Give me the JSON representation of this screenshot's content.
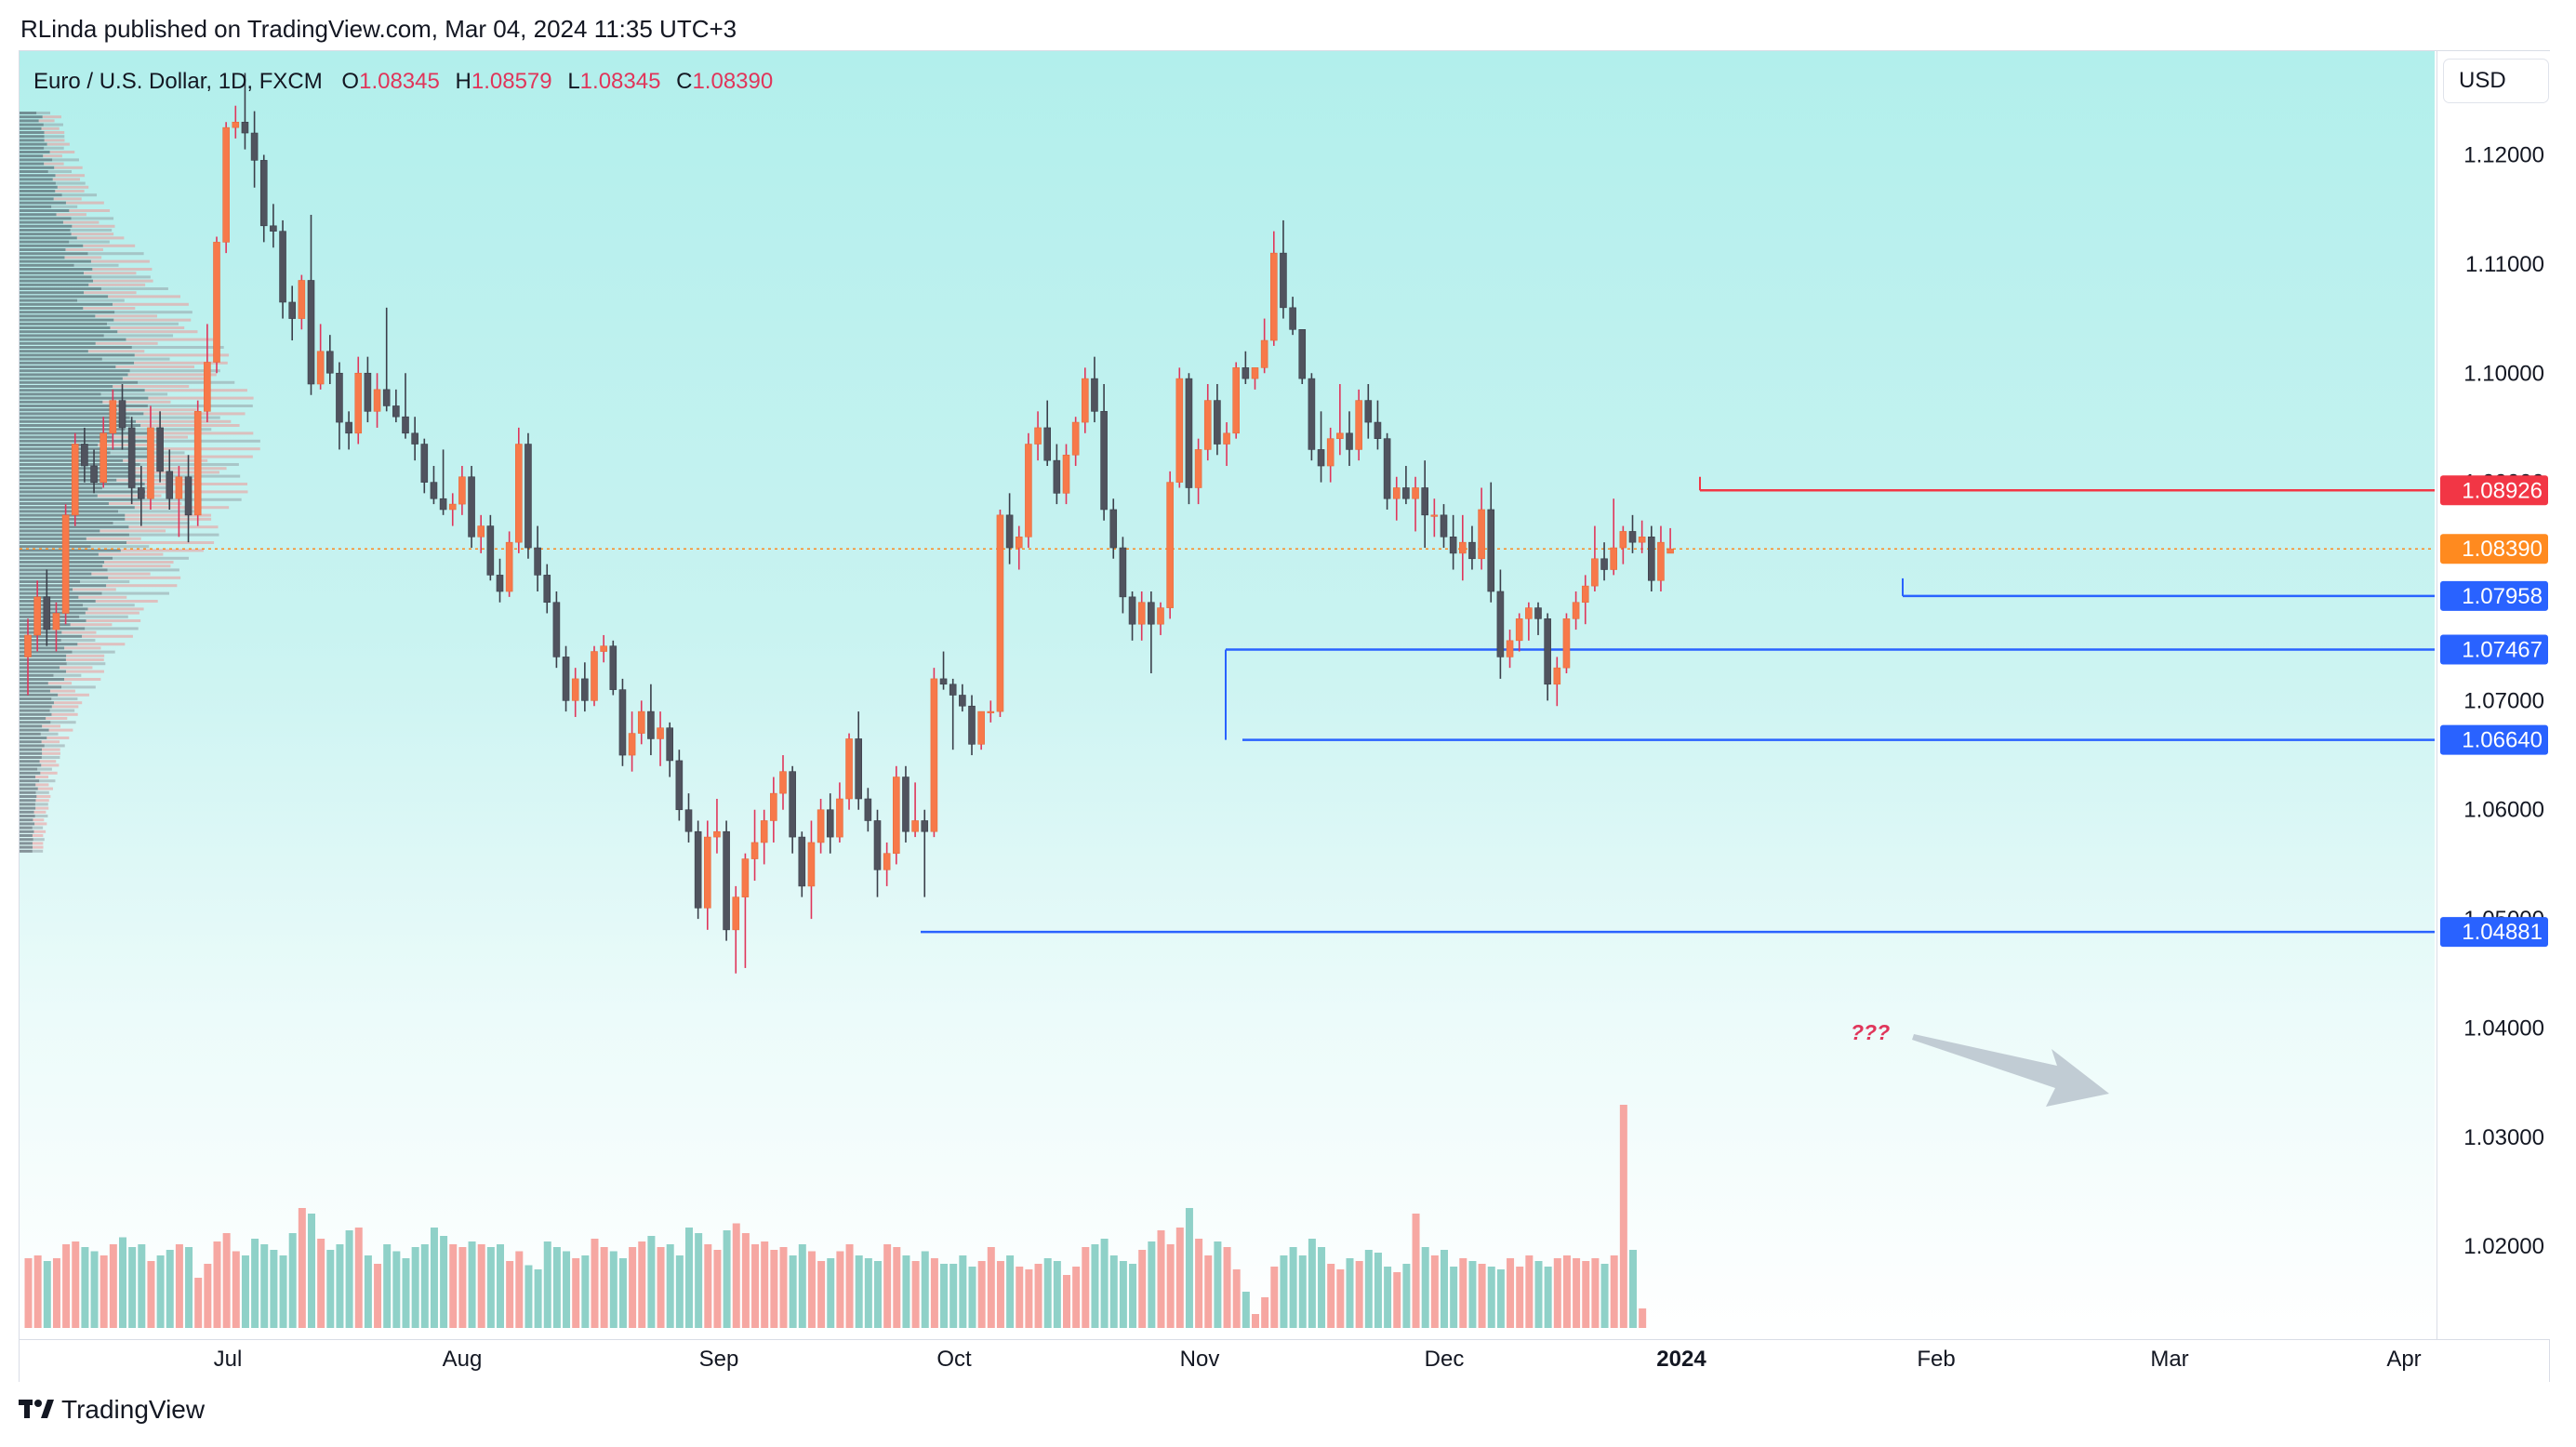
{
  "header": {
    "published": "RLinda published on TradingView.com, Mar 04, 2024 11:35 UTC+3"
  },
  "legend": {
    "symbol": "Euro / U.S. Dollar, 1D, FXCM",
    "o_label": "O",
    "o": "1.08345",
    "h_label": "H",
    "h": "1.08579",
    "l_label": "L",
    "l": "1.08345",
    "c_label": "C",
    "c": "1.08390"
  },
  "currency_button": "USD",
  "footer": {
    "brand": "TradingView"
  },
  "colors": {
    "up": "#f7794a",
    "down": "#50535e",
    "vol_up": "#f6a7a2",
    "vol_down": "#8fd1c8",
    "level_line": "#2962ff",
    "resistance_line": "#f23645",
    "current_price": "#ff8a1f"
  },
  "chart_data": {
    "type": "candlestick",
    "symbol": "EURUSD",
    "timeframe": "1D",
    "y_axis": {
      "min": 1.0115,
      "max": 1.1295,
      "ticks": [
        "1.12000",
        "1.11000",
        "1.10000",
        "1.09000",
        "1.08000",
        "1.07000",
        "1.06000",
        "1.05000",
        "1.04000",
        "1.03000",
        "1.02000"
      ]
    },
    "x_axis": {
      "labels": [
        "Jul",
        "Aug",
        "Sep",
        "Oct",
        "Nov",
        "Dec",
        "2024",
        "Feb",
        "Mar",
        "Apr"
      ]
    },
    "levels": [
      {
        "price": 1.08926,
        "label": "1.08926",
        "color": "#f23645",
        "start_date": "Jan 02, 2024"
      },
      {
        "price": 1.0839,
        "label": "1.08390",
        "color": "#ff8a1f",
        "dotted": true
      },
      {
        "price": 1.07958,
        "label": "1.07958",
        "color": "#2962ff",
        "start_date": "Jan 24, 2024"
      },
      {
        "price": 1.07467,
        "label": "1.07467",
        "color": "#2962ff",
        "start_date": "Oct 30, 2023"
      },
      {
        "price": 1.0664,
        "label": "1.06640",
        "color": "#2962ff",
        "start_date": "Nov 01, 2023"
      },
      {
        "price": 1.04881,
        "label": "1.04881",
        "color": "#2962ff",
        "start_date": "Sep 27, 2023"
      }
    ],
    "annotation": {
      "text": "???"
    },
    "candles_ohlc": [
      [
        1.074,
        1.0775,
        1.0705,
        1.076
      ],
      [
        1.076,
        1.081,
        1.0745,
        1.0795
      ],
      [
        1.0795,
        1.082,
        1.075,
        1.0765
      ],
      [
        1.0765,
        1.079,
        1.0745,
        1.078
      ],
      [
        1.078,
        1.088,
        1.077,
        1.087
      ],
      [
        1.087,
        1.0945,
        1.086,
        1.0935
      ],
      [
        1.0935,
        1.095,
        1.09,
        1.0915
      ],
      [
        1.0915,
        1.093,
        1.089,
        1.09
      ],
      [
        1.09,
        1.096,
        1.0895,
        1.0945
      ],
      [
        1.0945,
        1.0985,
        1.093,
        1.0975
      ],
      [
        1.0975,
        1.099,
        1.093,
        1.095
      ],
      [
        1.095,
        1.096,
        1.088,
        1.0895
      ],
      [
        1.0895,
        1.0915,
        1.086,
        1.0885
      ],
      [
        1.0885,
        1.097,
        1.0875,
        1.095
      ],
      [
        1.095,
        1.0965,
        1.09,
        1.091
      ],
      [
        1.091,
        1.093,
        1.0875,
        1.0885
      ],
      [
        1.0885,
        1.0915,
        1.085,
        1.0905
      ],
      [
        1.0905,
        1.0925,
        1.0845,
        1.087
      ],
      [
        1.087,
        1.0975,
        1.086,
        1.0965
      ],
      [
        1.0965,
        1.1045,
        1.0955,
        1.101
      ],
      [
        1.101,
        1.1125,
        1.1,
        1.112
      ],
      [
        1.112,
        1.123,
        1.111,
        1.1225
      ],
      [
        1.1225,
        1.1245,
        1.1215,
        1.123
      ],
      [
        1.123,
        1.1275,
        1.1205,
        1.122
      ],
      [
        1.122,
        1.124,
        1.117,
        1.1195
      ],
      [
        1.1195,
        1.12,
        1.112,
        1.1135
      ],
      [
        1.1135,
        1.1155,
        1.1115,
        1.113
      ],
      [
        1.113,
        1.114,
        1.105,
        1.1065
      ],
      [
        1.1065,
        1.108,
        1.103,
        1.105
      ],
      [
        1.105,
        1.109,
        1.104,
        1.1085
      ],
      [
        1.1085,
        1.1145,
        1.098,
        1.099
      ],
      [
        1.099,
        1.1045,
        1.0985,
        1.102
      ],
      [
        1.102,
        1.1035,
        1.099,
        1.1
      ],
      [
        1.1,
        1.101,
        1.093,
        1.0955
      ],
      [
        1.0955,
        1.0965,
        1.093,
        1.0945
      ],
      [
        1.0945,
        1.1015,
        1.0935,
        1.1
      ],
      [
        1.1,
        1.1015,
        1.0955,
        1.0965
      ],
      [
        1.0965,
        1.1,
        1.095,
        1.0985
      ],
      [
        1.0985,
        1.106,
        1.0965,
        1.097
      ],
      [
        1.097,
        1.0985,
        1.0955,
        1.096
      ],
      [
        1.096,
        1.1,
        1.094,
        1.0945
      ],
      [
        1.0945,
        1.096,
        1.092,
        1.0935
      ],
      [
        1.0935,
        1.094,
        1.089,
        1.09
      ],
      [
        1.09,
        1.0915,
        1.088,
        1.0885
      ],
      [
        1.0885,
        1.093,
        1.087,
        1.0875
      ],
      [
        1.0875,
        1.089,
        1.086,
        1.088
      ],
      [
        1.088,
        1.0915,
        1.087,
        1.0905
      ],
      [
        1.0905,
        1.0915,
        1.084,
        1.085
      ],
      [
        1.085,
        1.087,
        1.0835,
        1.086
      ],
      [
        1.086,
        1.087,
        1.081,
        1.0815
      ],
      [
        1.0815,
        1.083,
        1.079,
        1.08
      ],
      [
        1.08,
        1.0855,
        1.0795,
        1.0845
      ],
      [
        1.0845,
        1.095,
        1.0835,
        1.0935
      ],
      [
        1.0935,
        1.0945,
        1.083,
        1.084
      ],
      [
        1.084,
        1.086,
        1.08,
        1.0815
      ],
      [
        1.0815,
        1.0825,
        1.078,
        1.079
      ],
      [
        1.079,
        1.08,
        1.073,
        1.074
      ],
      [
        1.074,
        1.075,
        1.069,
        1.07
      ],
      [
        1.07,
        1.073,
        1.0685,
        1.072
      ],
      [
        1.072,
        1.0735,
        1.069,
        1.07
      ],
      [
        1.07,
        1.075,
        1.0695,
        1.0745
      ],
      [
        1.0745,
        1.076,
        1.0735,
        1.075
      ],
      [
        1.075,
        1.0755,
        1.0705,
        1.071
      ],
      [
        1.071,
        1.072,
        1.064,
        1.065
      ],
      [
        1.065,
        1.069,
        1.0635,
        1.067
      ],
      [
        1.067,
        1.07,
        1.066,
        1.069
      ],
      [
        1.069,
        1.0715,
        1.065,
        1.0665
      ],
      [
        1.0665,
        1.069,
        1.064,
        1.0675
      ],
      [
        1.0675,
        1.068,
        1.063,
        1.0645
      ],
      [
        1.0645,
        1.0655,
        1.059,
        1.06
      ],
      [
        1.06,
        1.0615,
        1.057,
        1.058
      ],
      [
        1.058,
        1.059,
        1.05,
        1.051
      ],
      [
        1.051,
        1.059,
        1.049,
        1.0575
      ],
      [
        1.0575,
        1.061,
        1.056,
        1.058
      ],
      [
        1.058,
        1.059,
        1.048,
        1.049
      ],
      [
        1.049,
        1.053,
        1.045,
        1.052
      ],
      [
        1.052,
        1.056,
        1.0455,
        1.0555
      ],
      [
        1.0555,
        1.06,
        1.0535,
        1.057
      ],
      [
        1.057,
        1.06,
        1.055,
        1.059
      ],
      [
        1.059,
        1.063,
        1.057,
        1.0615
      ],
      [
        1.0615,
        1.065,
        1.06,
        1.0635
      ],
      [
        1.0635,
        1.064,
        1.056,
        1.0575
      ],
      [
        1.0575,
        1.058,
        1.052,
        1.053
      ],
      [
        1.053,
        1.059,
        1.05,
        1.057
      ],
      [
        1.057,
        1.061,
        1.056,
        1.06
      ],
      [
        1.06,
        1.0615,
        1.056,
        1.0575
      ],
      [
        1.0575,
        1.0625,
        1.057,
        1.061
      ],
      [
        1.061,
        1.067,
        1.06,
        1.0665
      ],
      [
        1.0665,
        1.069,
        1.06,
        1.061
      ],
      [
        1.061,
        1.062,
        1.058,
        1.059
      ],
      [
        1.059,
        1.06,
        1.052,
        1.0545
      ],
      [
        1.0545,
        1.057,
        1.053,
        1.056
      ],
      [
        1.056,
        1.064,
        1.055,
        1.063
      ],
      [
        1.063,
        1.064,
        1.057,
        1.058
      ],
      [
        1.058,
        1.0625,
        1.0575,
        1.059
      ],
      [
        1.059,
        1.06,
        1.052,
        1.058
      ],
      [
        1.058,
        1.073,
        1.0575,
        1.072
      ],
      [
        1.072,
        1.0745,
        1.071,
        1.0715
      ],
      [
        1.0715,
        1.072,
        1.0655,
        1.0705
      ],
      [
        1.0705,
        1.0715,
        1.069,
        1.0695
      ],
      [
        1.0695,
        1.0705,
        1.065,
        1.066
      ],
      [
        1.066,
        1.069,
        1.0655,
        1.069
      ],
      [
        1.069,
        1.07,
        1.068,
        1.069
      ],
      [
        1.069,
        1.0875,
        1.0685,
        1.087
      ],
      [
        1.087,
        1.089,
        1.0825,
        1.084
      ],
      [
        1.084,
        1.086,
        1.082,
        1.085
      ],
      [
        1.085,
        1.0945,
        1.084,
        1.0935
      ],
      [
        1.0935,
        1.0965,
        1.092,
        1.095
      ],
      [
        1.095,
        1.0975,
        1.0915,
        1.092
      ],
      [
        1.092,
        1.0935,
        1.088,
        1.089
      ],
      [
        1.089,
        1.0935,
        1.088,
        1.0925
      ],
      [
        1.0925,
        1.096,
        1.0915,
        1.0955
      ],
      [
        1.0955,
        1.1005,
        1.0945,
        1.0995
      ],
      [
        1.0995,
        1.1015,
        1.0955,
        1.0965
      ],
      [
        1.0965,
        1.099,
        1.0865,
        1.0875
      ],
      [
        1.0875,
        1.0885,
        1.083,
        1.084
      ],
      [
        1.084,
        1.085,
        1.078,
        1.0795
      ],
      [
        1.0795,
        1.08,
        1.0755,
        1.077
      ],
      [
        1.077,
        1.08,
        1.0755,
        1.079
      ],
      [
        1.079,
        1.08,
        1.0725,
        1.077
      ],
      [
        1.077,
        1.079,
        1.076,
        1.0785
      ],
      [
        1.0785,
        1.091,
        1.0775,
        1.09
      ],
      [
        1.09,
        1.1005,
        1.0895,
        1.0995
      ],
      [
        1.0995,
        1.1,
        1.088,
        1.0895
      ],
      [
        1.0895,
        1.094,
        1.088,
        1.093
      ],
      [
        1.093,
        1.099,
        1.092,
        1.0975
      ],
      [
        1.0975,
        1.099,
        1.0925,
        1.0935
      ],
      [
        1.0935,
        1.0955,
        1.0915,
        1.0945
      ],
      [
        1.0945,
        1.101,
        1.094,
        1.1005
      ],
      [
        1.1005,
        1.102,
        1.099,
        1.0995
      ],
      [
        1.0995,
        1.1005,
        1.0985,
        1.1005
      ],
      [
        1.1005,
        1.105,
        1.1,
        1.103
      ],
      [
        1.103,
        1.113,
        1.1025,
        1.111
      ],
      [
        1.111,
        1.114,
        1.105,
        1.106
      ],
      [
        1.106,
        1.107,
        1.1035,
        1.104
      ],
      [
        1.104,
        1.104,
        1.099,
        1.0995
      ],
      [
        1.0995,
        1.1,
        1.092,
        1.093
      ],
      [
        1.093,
        1.0965,
        1.09,
        1.0915
      ],
      [
        1.0915,
        1.095,
        1.09,
        1.094
      ],
      [
        1.094,
        1.099,
        1.0925,
        1.0945
      ],
      [
        1.0945,
        1.0965,
        1.0915,
        1.093
      ],
      [
        1.093,
        1.0985,
        1.092,
        1.0975
      ],
      [
        1.0975,
        1.099,
        1.094,
        1.0955
      ],
      [
        1.0955,
        1.0975,
        1.093,
        1.094
      ],
      [
        1.094,
        1.0945,
        1.0875,
        1.0885
      ],
      [
        1.0885,
        1.0905,
        1.0865,
        1.0895
      ],
      [
        1.0895,
        1.0915,
        1.088,
        1.0885
      ],
      [
        1.0885,
        1.0905,
        1.0855,
        1.0895
      ],
      [
        1.0895,
        1.092,
        1.084,
        1.087
      ],
      [
        1.087,
        1.0885,
        1.085,
        1.087
      ],
      [
        1.087,
        1.088,
        1.084,
        1.085
      ],
      [
        1.085,
        1.087,
        1.082,
        1.0835
      ],
      [
        1.0835,
        1.087,
        1.081,
        1.0845
      ],
      [
        1.0845,
        1.086,
        1.082,
        1.083
      ],
      [
        1.083,
        1.0895,
        1.082,
        1.0875
      ],
      [
        1.0875,
        1.09,
        1.079,
        1.08
      ],
      [
        1.08,
        1.082,
        1.072,
        1.074
      ],
      [
        1.074,
        1.0765,
        1.073,
        1.0755
      ],
      [
        1.0755,
        1.078,
        1.0745,
        1.0775
      ],
      [
        1.0775,
        1.079,
        1.0755,
        1.0785
      ],
      [
        1.0785,
        1.079,
        1.076,
        1.0775
      ],
      [
        1.0775,
        1.078,
        1.07,
        1.0715
      ],
      [
        1.0715,
        1.074,
        1.0695,
        1.073
      ],
      [
        1.073,
        1.078,
        1.0725,
        1.0775
      ],
      [
        1.0775,
        1.08,
        1.0765,
        1.079
      ],
      [
        1.079,
        1.0815,
        1.077,
        1.0805
      ],
      [
        1.0805,
        1.086,
        1.08,
        1.083
      ],
      [
        1.083,
        1.0845,
        1.081,
        1.082
      ],
      [
        1.082,
        1.0885,
        1.0815,
        1.084
      ],
      [
        1.084,
        1.086,
        1.0825,
        1.0855
      ],
      [
        1.0855,
        1.087,
        1.0835,
        1.0845
      ],
      [
        1.0845,
        1.0865,
        1.0835,
        1.085
      ],
      [
        1.085,
        1.086,
        1.08,
        1.081
      ],
      [
        1.081,
        1.086,
        1.08,
        1.0845
      ],
      [
        1.0835,
        1.0858,
        1.0835,
        1.0839
      ]
    ],
    "volume_relative": [
      0.5,
      0.52,
      0.48,
      0.5,
      0.6,
      0.62,
      0.58,
      0.55,
      0.52,
      0.6,
      0.65,
      0.58,
      0.6,
      0.48,
      0.52,
      0.56,
      0.6,
      0.58,
      0.36,
      0.46,
      0.62,
      0.68,
      0.55,
      0.52,
      0.64,
      0.6,
      0.56,
      0.52,
      0.68,
      0.86,
      0.82,
      0.64,
      0.56,
      0.6,
      0.7,
      0.72,
      0.52,
      0.46,
      0.6,
      0.55,
      0.5,
      0.58,
      0.6,
      0.72,
      0.66,
      0.6,
      0.58,
      0.62,
      0.6,
      0.58,
      0.6,
      0.48,
      0.55,
      0.45,
      0.42,
      0.62,
      0.58,
      0.55,
      0.5,
      0.52,
      0.64,
      0.58,
      0.55,
      0.5,
      0.58,
      0.62,
      0.66,
      0.58,
      0.6,
      0.52,
      0.72,
      0.68,
      0.6,
      0.56,
      0.7,
      0.75,
      0.68,
      0.6,
      0.62,
      0.56,
      0.58,
      0.52,
      0.6,
      0.55,
      0.48,
      0.5,
      0.55,
      0.6,
      0.52,
      0.5,
      0.48,
      0.6,
      0.58,
      0.52,
      0.48,
      0.55,
      0.5,
      0.46,
      0.46,
      0.52,
      0.44,
      0.48,
      0.58,
      0.48,
      0.52,
      0.44,
      0.42,
      0.46,
      0.5,
      0.48,
      0.38,
      0.44,
      0.58,
      0.6,
      0.64,
      0.52,
      0.48,
      0.46,
      0.56,
      0.62,
      0.7,
      0.6,
      0.72,
      0.86,
      0.64,
      0.52,
      0.62,
      0.58,
      0.42,
      0.26,
      0.1,
      0.22,
      0.44,
      0.52,
      0.58,
      0.52,
      0.64,
      0.58,
      0.46,
      0.42,
      0.5,
      0.48,
      0.56,
      0.54,
      0.44,
      0.4,
      0.46,
      0.82,
      0.58,
      0.52,
      0.56,
      0.44,
      0.5,
      0.48,
      0.46,
      0.44,
      0.42,
      0.5,
      0.44,
      0.52,
      0.48,
      0.44,
      0.5,
      0.52,
      0.5,
      0.48,
      0.5,
      0.46,
      0.52,
      1.6,
      0.56,
      0.14
    ]
  }
}
